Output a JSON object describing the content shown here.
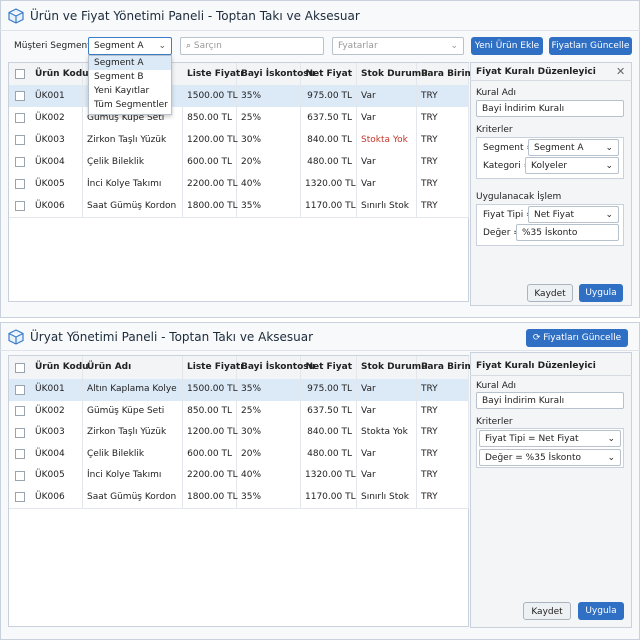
{
  "top": {
    "title": "Ürün ve Fiyat Yönetimi Paneli - Toptan Takı ve Aksesuar",
    "segment_label": "Müşteri Segmenti",
    "segment_value": "Segment A",
    "segment_options": [
      "Segment A",
      "Segment B",
      "Yeni Kayıtlar",
      "Tüm Segmentler"
    ],
    "search_placeholder": "Sarçın",
    "price_filter": "Fyatarlar",
    "add_button": "Yeni Ürün Ekle",
    "update_button": "Fiyatları Güncelle",
    "table": {
      "headers": [
        "Ürün Kodu",
        null,
        "Liste Fiyatı",
        "Bayi İskontosu",
        "Net Fiyat",
        "Stok Durumu",
        "Para Birimi"
      ],
      "rows": [
        [
          "ÜK001",
          null,
          "1500.00 TL",
          "35%",
          "975.00 TL",
          "Var",
          "TRY"
        ],
        [
          "ÜK002",
          "Gumuş Küpe Seti",
          "850.00 TL",
          "25%",
          "637.50 TL",
          "Var",
          "TRY"
        ],
        [
          "ÜK003",
          "Zirkon Taşlı Yüzük",
          "1200.00 TL",
          "30%",
          "840.00 TL",
          "Stokta Yok",
          "TRY"
        ],
        [
          "ÜK004",
          "Çelik Bileklik",
          "600.00 TL",
          "20%",
          "480.00 TL",
          "Var",
          "TRY"
        ],
        [
          "ÜK005",
          "İnci Kolye Takımı",
          "2200.00 TL",
          "40%",
          "1320.00 TL",
          "Var",
          "TRY"
        ],
        [
          "ÜK006",
          "Saat Gümüş Kordon",
          "1800.00 TL",
          "35%",
          "1170.00 TL",
          "Sınırlı Stok",
          "TRY"
        ]
      ]
    },
    "editor": {
      "title": "Fiyat Kuralı Düzenleyici",
      "rule_label": "Kural Adı",
      "rule_name": "Bayi İndirim Kuralı",
      "criteria_label": "Kriterler",
      "segment_key": "Segment =",
      "segment_value": "Segment A",
      "category_key": "Kategori =",
      "category_value": "Kolyeler",
      "action_label": "Uygulanacak İşlem",
      "price_type_key": "Fiyat Tipi =",
      "price_type_value": "Net Fiyat",
      "value_key": "Değer =",
      "value_value": "%35 İskonto",
      "save": "Kaydet",
      "apply": "Uygula"
    }
  },
  "bottom": {
    "title": "Üryat Yönetimi Paneli - Toptan Takı ve Aksesuar",
    "update_button": "Fiyatları Güncelle",
    "table": {
      "headers": [
        "Ürün Kodu",
        "Ürün Adı",
        "Liste Fiyatı",
        "Bayi İskontosu",
        "Net Fiyat",
        "Stok Durumu",
        "Para Birimi"
      ],
      "rows": [
        [
          "ÜK001",
          "Altın Kaplama Kolye",
          "1500.00 TL",
          "35%",
          "975.00 TL",
          "Var",
          "TRY"
        ],
        [
          "ÜK002",
          "Gümüş Küpe Seti",
          "850.00 TL",
          "25%",
          "637.50 TL",
          "Var",
          "TRY"
        ],
        [
          "ÜK003",
          "Zirkon Taşlı Yüzük",
          "1200.00 TL",
          "30%",
          "840.00 TL",
          "Stokta Yok",
          "TRY"
        ],
        [
          "ÜK004",
          "Çelik Bileklik",
          "600.00 TL",
          "20%",
          "480.00 TL",
          "Var",
          "TRY"
        ],
        [
          "ÜK005",
          "İnci Kolye Takımı",
          "2200.00 TL",
          "40%",
          "1320.00 TL",
          "Var",
          "TRY"
        ],
        [
          "ÜK006",
          "Saat Gümüş Kordon",
          "1800.00 TL",
          "35%",
          "1170.00 TL",
          "Sınırlı Stok",
          "TRY"
        ]
      ]
    },
    "editor": {
      "title": "Fiyat Kuralı Düzenleyici",
      "rule_label": "Kural Adı",
      "rule_name": "Bayi İndirim Kuralı",
      "criteria_label": "Kriterler",
      "price_type_rule": "Fiyat Tipi = Net Fiyat",
      "value_rule": "Değer = %35 İskonto",
      "save": "Kaydet",
      "apply": "Uygula"
    }
  }
}
